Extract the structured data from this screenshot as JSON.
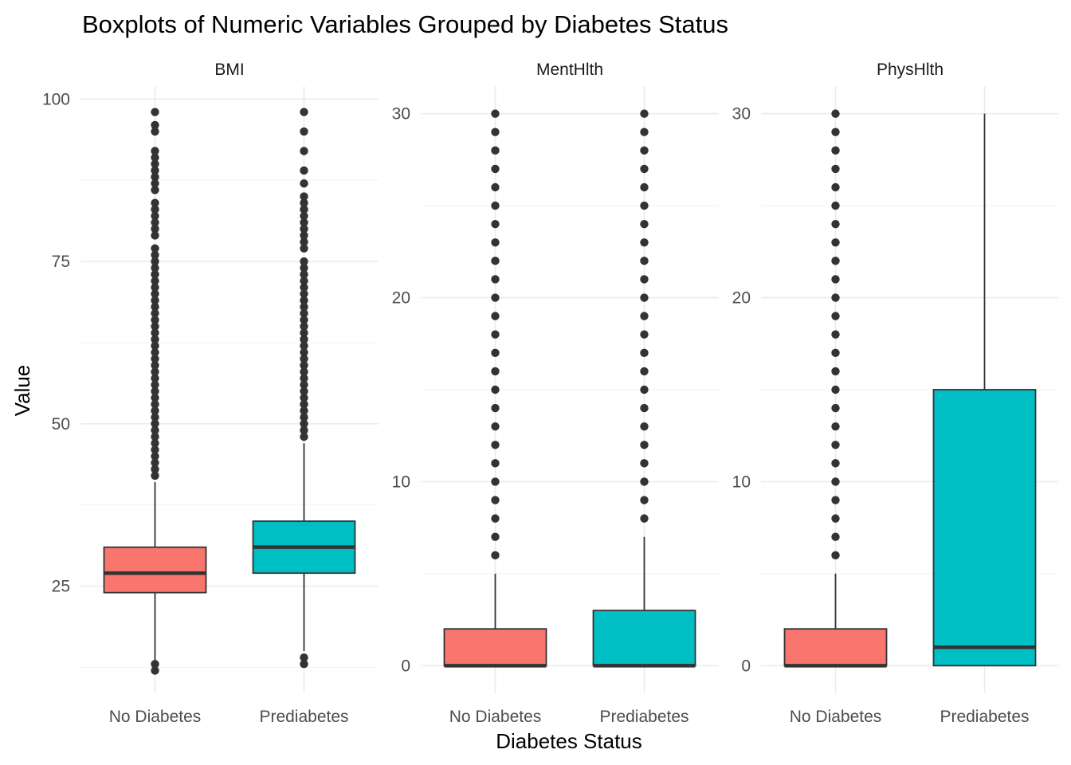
{
  "chart_data": {
    "type": "boxplot",
    "title": "Boxplots of Numeric Variables Grouped by Diabetes Status",
    "xlabel": "Diabetes Status",
    "ylabel": "Value",
    "categories": [
      "No Diabetes",
      "Prediabetes"
    ],
    "colors": {
      "No Diabetes": "#F8766D",
      "Prediabetes": "#00BFC4",
      "outline": "#333333",
      "points": "#333333"
    },
    "grid": true,
    "legend": "none",
    "panels": [
      {
        "name": "BMI",
        "ylim": [
          8.5,
          102
        ],
        "yticks": [
          25,
          50,
          75,
          100
        ],
        "ytick_labels": [
          "25",
          "50",
          "75",
          "100"
        ],
        "boxes": [
          {
            "category": "No Diabetes",
            "q1": 24,
            "median": 27,
            "q3": 31,
            "whisker_low": 12,
            "whisker_high": 41,
            "outliers": [
              12,
              13,
              42,
              43,
              44,
              45,
              46,
              47,
              48,
              49,
              50,
              51,
              52,
              53,
              54,
              55,
              56,
              57,
              58,
              59,
              60,
              61,
              62,
              63,
              64,
              65,
              66,
              67,
              68,
              69,
              70,
              71,
              72,
              73,
              74,
              75,
              76,
              77,
              79,
              80,
              81,
              82,
              83,
              84,
              86,
              87,
              88,
              89,
              90,
              91,
              92,
              95,
              96,
              98
            ]
          },
          {
            "category": "Prediabetes",
            "q1": 27,
            "median": 31,
            "q3": 35,
            "whisker_low": 15,
            "whisker_high": 47,
            "outliers": [
              13,
              14,
              48,
              49,
              50,
              51,
              52,
              53,
              54,
              55,
              56,
              57,
              58,
              59,
              60,
              61,
              62,
              63,
              64,
              65,
              66,
              67,
              68,
              69,
              70,
              71,
              72,
              73,
              74,
              75,
              77,
              78,
              79,
              80,
              81,
              82,
              83,
              84,
              85,
              87,
              89,
              92,
              95,
              98
            ]
          }
        ]
      },
      {
        "name": "MentHlth",
        "ylim": [
          -1.5,
          31.5
        ],
        "yticks": [
          0,
          10,
          20,
          30
        ],
        "ytick_labels": [
          "0",
          "10",
          "20",
          "30"
        ],
        "boxes": [
          {
            "category": "No Diabetes",
            "q1": 0,
            "median": 0,
            "q3": 2,
            "whisker_low": 0,
            "whisker_high": 5,
            "outliers": [
              6,
              7,
              8,
              9,
              10,
              11,
              12,
              13,
              14,
              15,
              16,
              17,
              18,
              19,
              20,
              21,
              22,
              23,
              24,
              25,
              26,
              27,
              28,
              29,
              30
            ]
          },
          {
            "category": "Prediabetes",
            "q1": 0,
            "median": 0,
            "q3": 3,
            "whisker_low": 0,
            "whisker_high": 7,
            "outliers": [
              8,
              9,
              10,
              11,
              12,
              13,
              14,
              15,
              16,
              17,
              18,
              19,
              20,
              21,
              22,
              23,
              24,
              25,
              26,
              27,
              28,
              29,
              30
            ]
          }
        ]
      },
      {
        "name": "PhysHlth",
        "ylim": [
          -1.5,
          31.5
        ],
        "yticks": [
          0,
          10,
          20,
          30
        ],
        "ytick_labels": [
          "0",
          "10",
          "20",
          "30"
        ],
        "boxes": [
          {
            "category": "No Diabetes",
            "q1": 0,
            "median": 0,
            "q3": 2,
            "whisker_low": 0,
            "whisker_high": 5,
            "outliers": [
              6,
              7,
              8,
              9,
              10,
              11,
              12,
              13,
              14,
              15,
              16,
              17,
              18,
              19,
              20,
              21,
              22,
              23,
              24,
              25,
              26,
              27,
              28,
              29,
              30
            ]
          },
          {
            "category": "Prediabetes",
            "q1": 0,
            "median": 1,
            "q3": 15,
            "whisker_low": 0,
            "whisker_high": 30,
            "outliers": []
          }
        ]
      }
    ]
  }
}
